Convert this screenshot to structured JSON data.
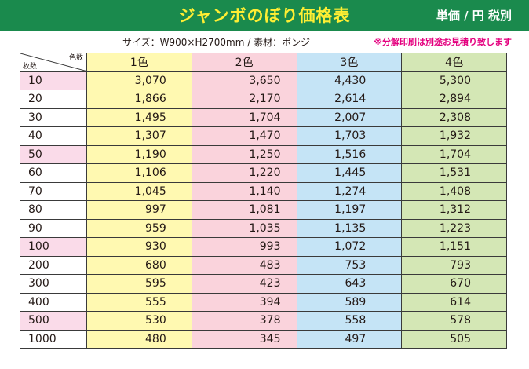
{
  "title": "ジャンボのぼり価格表",
  "unit_label": "単価 / 円 税別",
  "specs": "サイズ：W900×H2700mm / 素材：ポンジ",
  "note": "※分解印刷は別途お見積り致します",
  "colors": {
    "banner": "#1a8a4d",
    "title": "#ffee33",
    "note": "#e4007f",
    "col1": "#fff9b1",
    "col2": "#fad3dc",
    "col3": "#c5e4f6",
    "col4": "#d4e7b5",
    "qty_highlight": "#fadbe9"
  },
  "table": {
    "corner": {
      "colors_label": "色数",
      "qty_label": "枚数"
    },
    "columns": [
      "1色",
      "2色",
      "3色",
      "4色"
    ],
    "rows": [
      {
        "qty": "10",
        "highlight": true,
        "prices": [
          "3,070",
          "3,650",
          "4,430",
          "5,300"
        ]
      },
      {
        "qty": "20",
        "highlight": false,
        "prices": [
          "1,866",
          "2,170",
          "2,614",
          "2,894"
        ]
      },
      {
        "qty": "30",
        "highlight": false,
        "prices": [
          "1,495",
          "1,704",
          "2,007",
          "2,308"
        ]
      },
      {
        "qty": "40",
        "highlight": false,
        "prices": [
          "1,307",
          "1,470",
          "1,703",
          "1,932"
        ]
      },
      {
        "qty": "50",
        "highlight": true,
        "prices": [
          "1,190",
          "1,250",
          "1,516",
          "1,704"
        ]
      },
      {
        "qty": "60",
        "highlight": false,
        "prices": [
          "1,106",
          "1,220",
          "1,445",
          "1,531"
        ]
      },
      {
        "qty": "70",
        "highlight": false,
        "prices": [
          "1,045",
          "1,140",
          "1,274",
          "1,408"
        ]
      },
      {
        "qty": "80",
        "highlight": false,
        "prices": [
          "997",
          "1,081",
          "1,197",
          "1,312"
        ]
      },
      {
        "qty": "90",
        "highlight": false,
        "prices": [
          "959",
          "1,035",
          "1,135",
          "1,223"
        ]
      },
      {
        "qty": "100",
        "highlight": true,
        "prices": [
          "930",
          "993",
          "1,072",
          "1,151"
        ]
      },
      {
        "qty": "200",
        "highlight": false,
        "prices": [
          "680",
          "483",
          "753",
          "793"
        ]
      },
      {
        "qty": "300",
        "highlight": false,
        "prices": [
          "595",
          "423",
          "643",
          "670"
        ]
      },
      {
        "qty": "400",
        "highlight": false,
        "prices": [
          "555",
          "394",
          "589",
          "614"
        ]
      },
      {
        "qty": "500",
        "highlight": true,
        "prices": [
          "530",
          "378",
          "558",
          "578"
        ]
      },
      {
        "qty": "1000",
        "highlight": false,
        "prices": [
          "480",
          "345",
          "497",
          "505"
        ]
      }
    ]
  }
}
